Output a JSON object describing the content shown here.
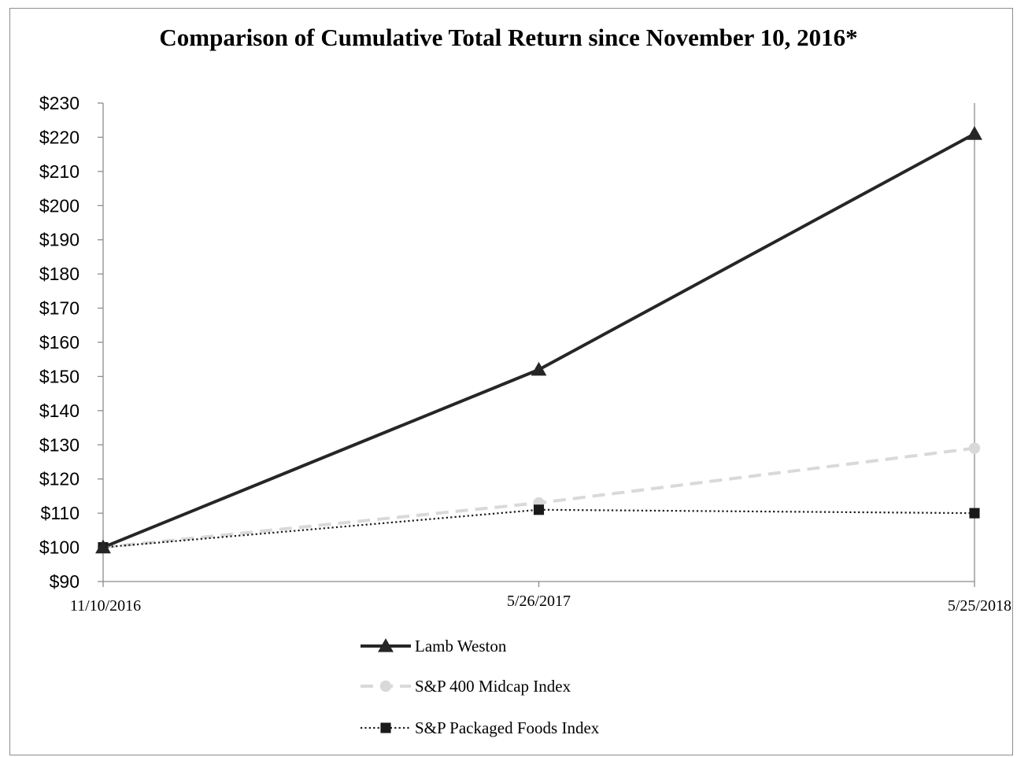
{
  "chart_data": {
    "type": "line",
    "title": "Comparison of Cumulative Total Return since November 10, 2016*",
    "xlabel": "",
    "ylabel": "",
    "categories": [
      "11/10/2016",
      "5/26/2017",
      "5/25/2018"
    ],
    "ylim": [
      90,
      230
    ],
    "yticks": [
      90,
      100,
      110,
      120,
      130,
      140,
      150,
      160,
      170,
      180,
      190,
      200,
      210,
      220,
      230
    ],
    "y_tick_prefix": "$",
    "grid": false,
    "legend_position": "bottom",
    "series": [
      {
        "name": "Lamb Weston",
        "values": [
          100,
          152,
          221
        ],
        "color": "#262626",
        "line_style": "solid",
        "marker": "triangle"
      },
      {
        "name": "S&P 400 Midcap Index",
        "values": [
          100,
          113,
          129
        ],
        "color": "#d9d9d9",
        "line_style": "dashed",
        "marker": "circle"
      },
      {
        "name": "S&P Packaged Foods Index",
        "values": [
          100,
          111,
          110
        ],
        "color": "#1a1a1a",
        "line_style": "dotted",
        "marker": "square"
      }
    ]
  }
}
